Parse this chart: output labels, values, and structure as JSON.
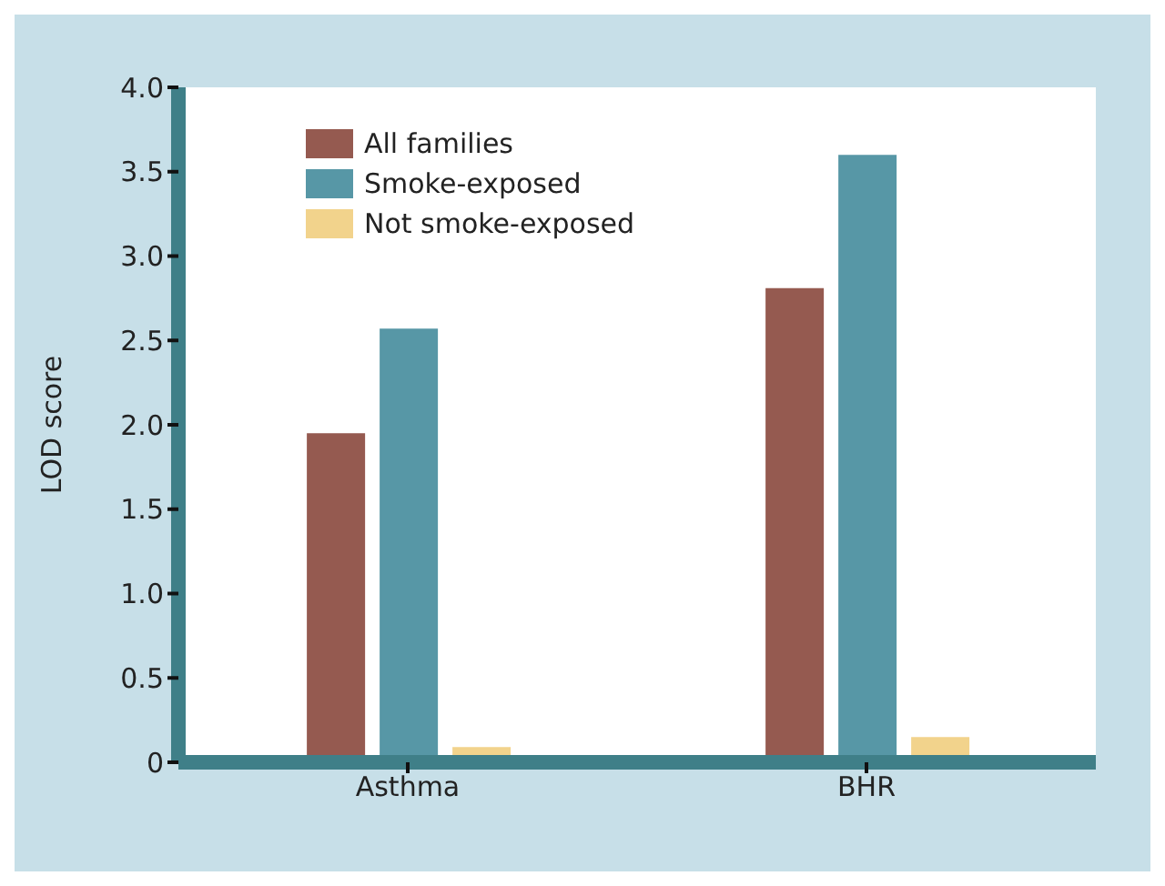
{
  "chart_data": {
    "type": "bar",
    "ylabel": "LOD score",
    "categories": [
      "Asthma",
      "BHR"
    ],
    "series": [
      {
        "name": "All families",
        "color": "#955a50",
        "values": [
          1.95,
          2.81
        ]
      },
      {
        "name": "Smoke-exposed",
        "color": "#5797a6",
        "values": [
          2.57,
          3.6
        ]
      },
      {
        "name": "Not smoke-exposed",
        "color": "#f2d38c",
        "values": [
          0.09,
          0.15
        ]
      }
    ],
    "ylim": [
      0,
      4
    ],
    "yticks": [
      0,
      {
        "value": 0.5,
        "label": "0.5"
      },
      {
        "value": 1,
        "label": "1.0"
      },
      {
        "value": 1.5,
        "label": "1.5"
      },
      {
        "value": 2,
        "label": "2.0"
      },
      {
        "value": 2.5,
        "label": "2.5"
      },
      {
        "value": 3,
        "label": "3.0"
      },
      {
        "value": 3.5,
        "label": "3.5"
      },
      {
        "value": 4,
        "label": "4.0"
      }
    ],
    "legend": "top left",
    "grid": false
  }
}
